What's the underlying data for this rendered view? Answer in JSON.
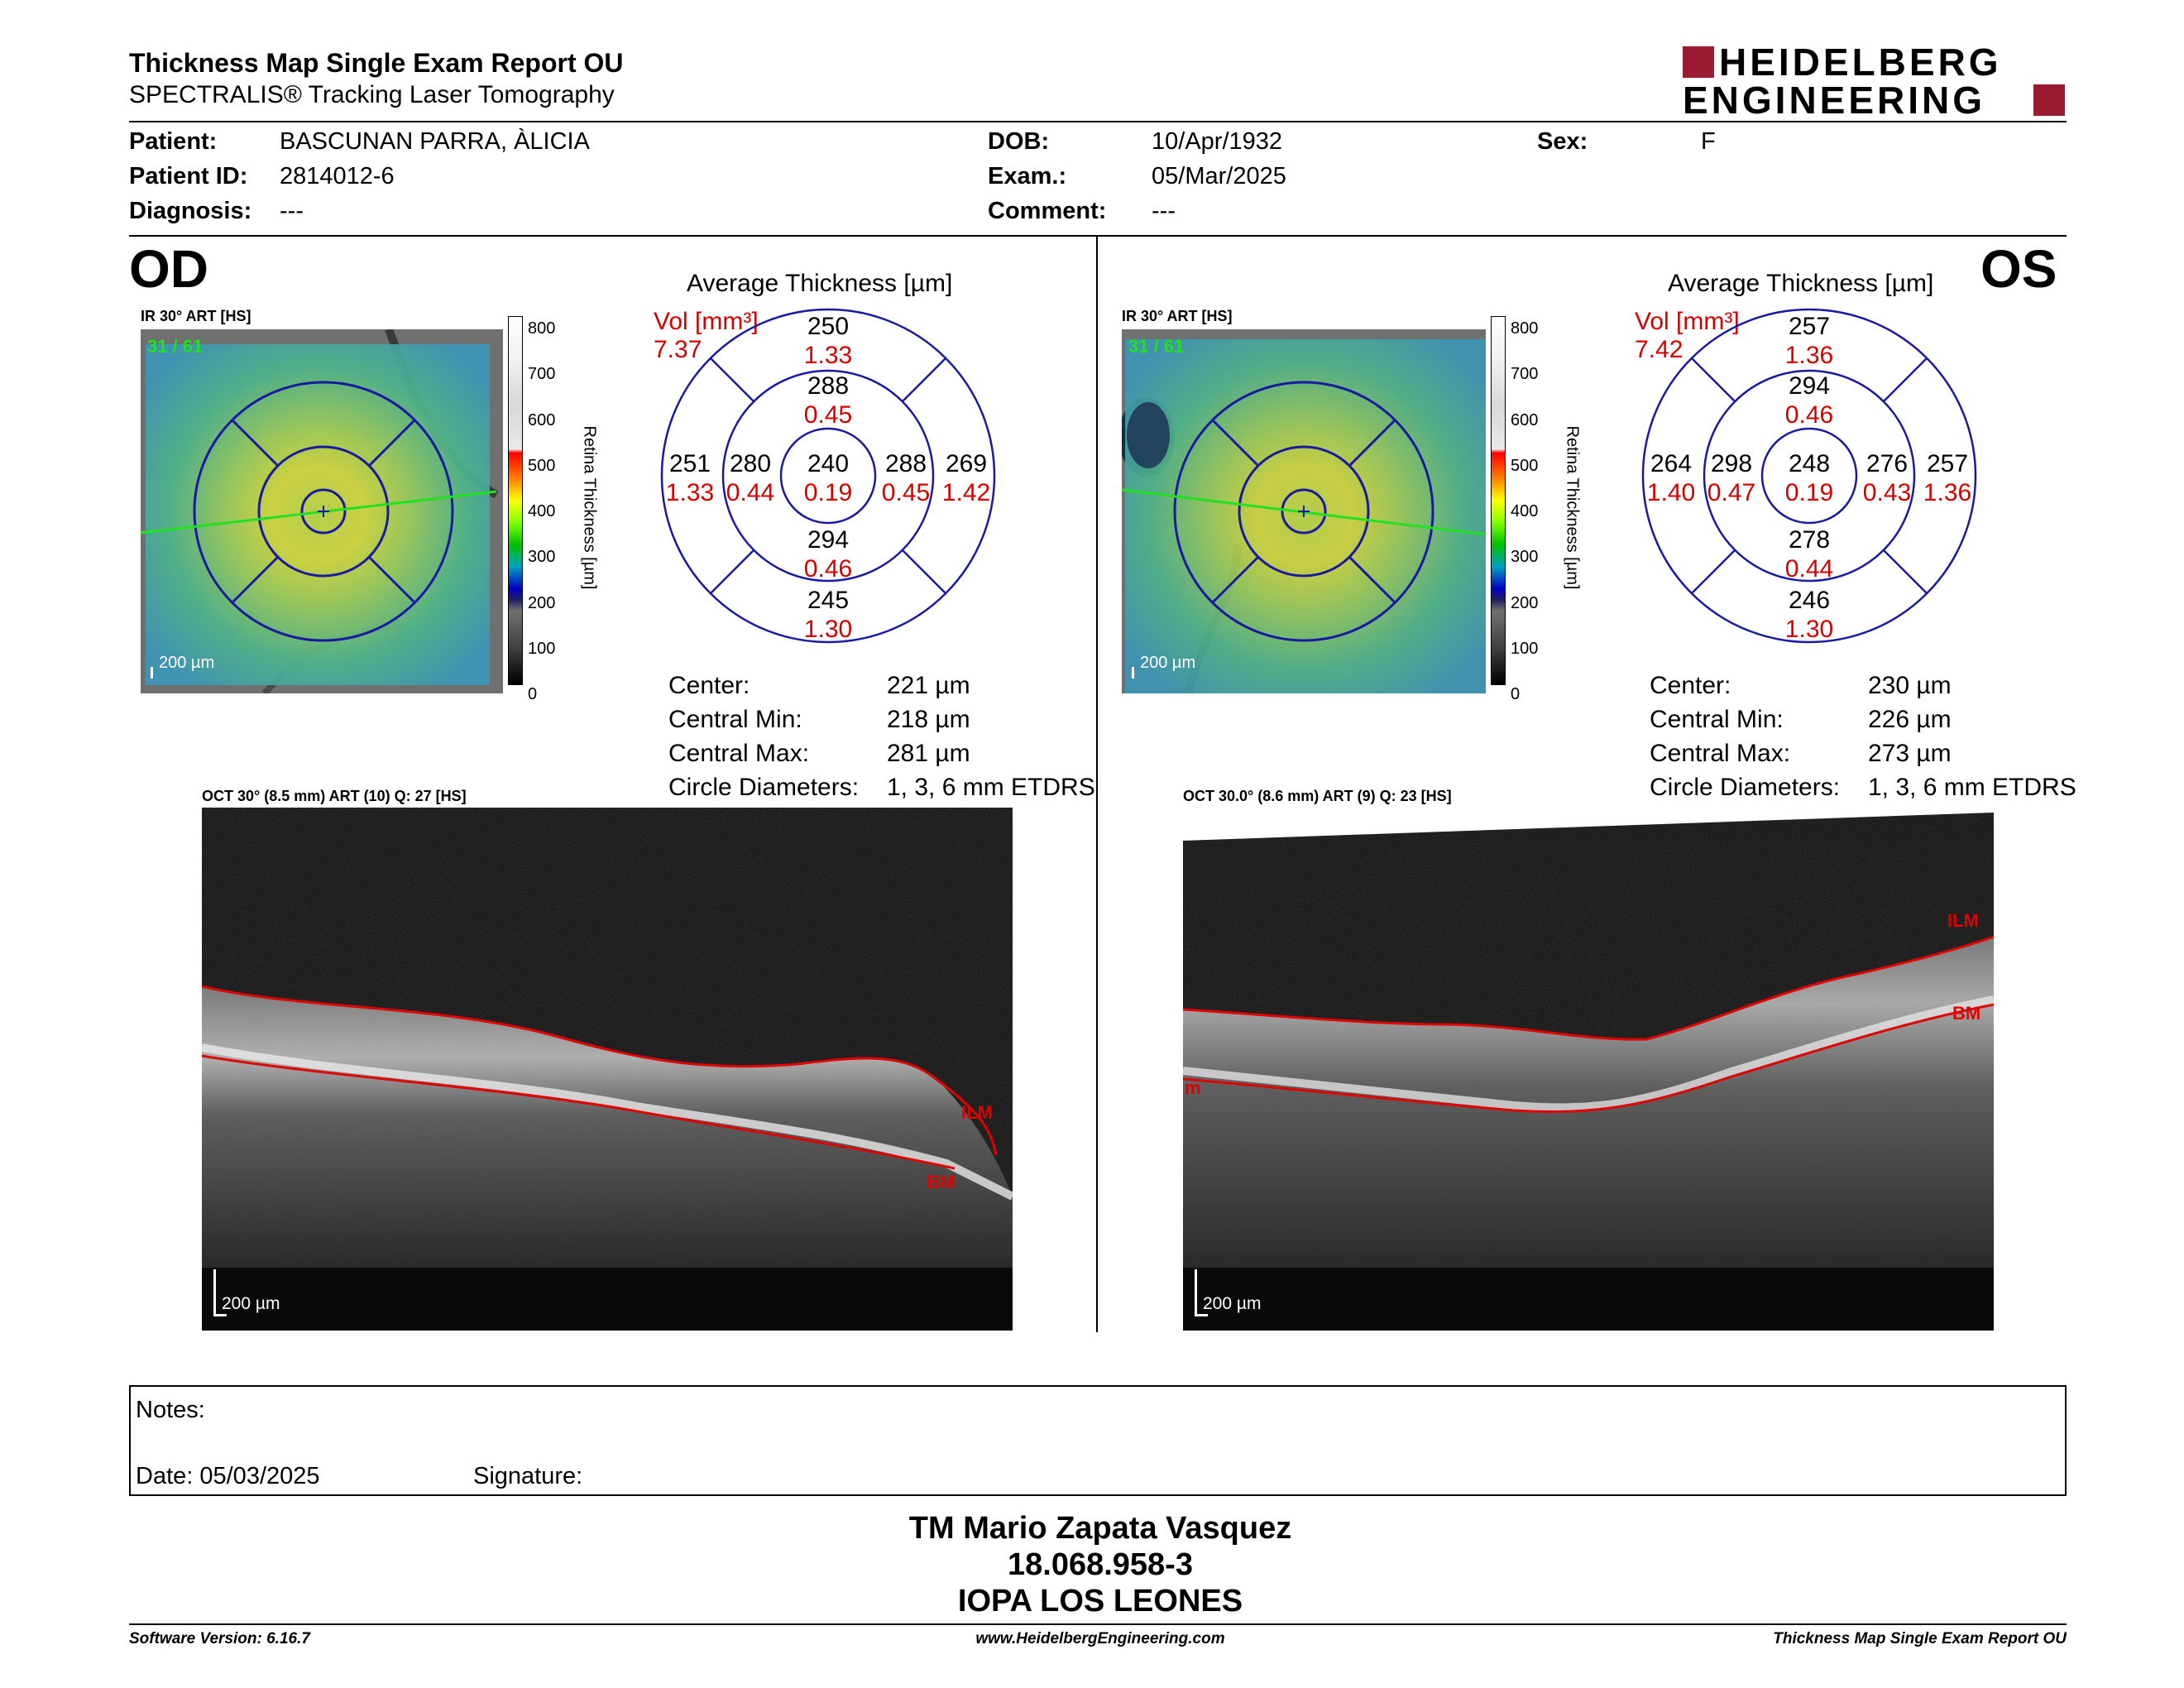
{
  "header": {
    "title": "Thickness Map Single Exam Report OU",
    "subtitle": "SPECTRALIS® Tracking Laser Tomography",
    "logo_line1": "HEIDELBERG",
    "logo_line2": "ENGINEERING",
    "brand_color": "#9b1b30"
  },
  "patient": {
    "patient_label": "Patient:",
    "patient_value": "BASCUNAN PARRA, ÀLICIA",
    "id_label": "Patient ID:",
    "id_value": "2814012-6",
    "diagnosis_label": "Diagnosis:",
    "diagnosis_value": "---",
    "dob_label": "DOB:",
    "dob_value": "10/Apr/1932",
    "exam_label": "Exam.:",
    "exam_value": "05/Mar/2025",
    "comment_label": "Comment:",
    "comment_value": "---",
    "sex_label": "Sex:",
    "sex_value": "F"
  },
  "od": {
    "eye": "OD",
    "ir_caption": "IR 30° ART [HS]",
    "frame_count": "31 / 61",
    "scale": "200 µm",
    "colorbar_ticks": [
      "800",
      "700",
      "600",
      "500",
      "400",
      "300",
      "200",
      "100",
      "0"
    ],
    "colorbar_title": "Retina Thickness [µm]",
    "avg_title": "Average Thickness [µm]",
    "vol_label": "Vol [mm³]",
    "vol_value": "7.37",
    "grid": {
      "center": {
        "t": "240",
        "v": "0.19"
      },
      "inner_sup": {
        "t": "288",
        "v": "0.45"
      },
      "inner_inf": {
        "t": "294",
        "v": "0.46"
      },
      "inner_left": {
        "t": "280",
        "v": "0.44"
      },
      "inner_right": {
        "t": "288",
        "v": "0.45"
      },
      "outer_sup": {
        "t": "250",
        "v": "1.33"
      },
      "outer_inf": {
        "t": "245",
        "v": "1.30"
      },
      "outer_left": {
        "t": "251",
        "v": "1.33"
      },
      "outer_right": {
        "t": "269",
        "v": "1.42"
      }
    },
    "stats": [
      {
        "label": "Center:",
        "value": "221 µm"
      },
      {
        "label": "Central Min:",
        "value": "218 µm"
      },
      {
        "label": "Central Max:",
        "value": "281 µm"
      },
      {
        "label": "Circle Diameters:",
        "value": "1, 3, 6 mm ETDRS"
      }
    ],
    "oct_caption": "OCT 30° (8.5 mm) ART (10) Q: 27 [HS]",
    "ilm": "ILM",
    "bm": "BM",
    "oct_scale": "200 µm"
  },
  "os": {
    "eye": "OS",
    "ir_caption": "IR 30° ART [HS]",
    "frame_count": "31 / 61",
    "scale": "200 µm",
    "colorbar_ticks": [
      "800",
      "700",
      "600",
      "500",
      "400",
      "300",
      "200",
      "100",
      "0"
    ],
    "colorbar_title": "Retina Thickness [µm]",
    "avg_title": "Average Thickness [µm]",
    "vol_label": "Vol [mm³]",
    "vol_value": "7.42",
    "grid": {
      "center": {
        "t": "248",
        "v": "0.19"
      },
      "inner_sup": {
        "t": "294",
        "v": "0.46"
      },
      "inner_inf": {
        "t": "278",
        "v": "0.44"
      },
      "inner_left": {
        "t": "298",
        "v": "0.47"
      },
      "inner_right": {
        "t": "276",
        "v": "0.43"
      },
      "outer_sup": {
        "t": "257",
        "v": "1.36"
      },
      "outer_inf": {
        "t": "246",
        "v": "1.30"
      },
      "outer_left": {
        "t": "264",
        "v": "1.40"
      },
      "outer_right": {
        "t": "257",
        "v": "1.36"
      }
    },
    "stats": [
      {
        "label": "Center:",
        "value": "230 µm"
      },
      {
        "label": "Central Min:",
        "value": "226 µm"
      },
      {
        "label": "Central Max:",
        "value": "273 µm"
      },
      {
        "label": "Circle Diameters:",
        "value": "1, 3, 6 mm ETDRS"
      }
    ],
    "oct_caption": "OCT 30.0° (8.6 mm) ART (9) Q: 23 [HS]",
    "ilm": "ILM",
    "bm": "BM",
    "oct_edge_label": "m",
    "oct_scale": "200 µm"
  },
  "notes": {
    "notes_label": "Notes:",
    "date_label": "Date: 05/03/2025",
    "signature_label": "Signature:"
  },
  "signature_block": {
    "name": "TM Mario Zapata Vasquez",
    "rut": "18.068.958-3",
    "institution": "IOPA LOS LEONES"
  },
  "footer": {
    "software": "Software Version: 6.16.7",
    "website": "www.HeidelbergEngineering.com",
    "report": "Thickness Map Single Exam Report OU"
  },
  "colors": {
    "value_red": "#d40000",
    "grid_blue": "#1a1aa0",
    "ilm_red": "#e00000"
  }
}
